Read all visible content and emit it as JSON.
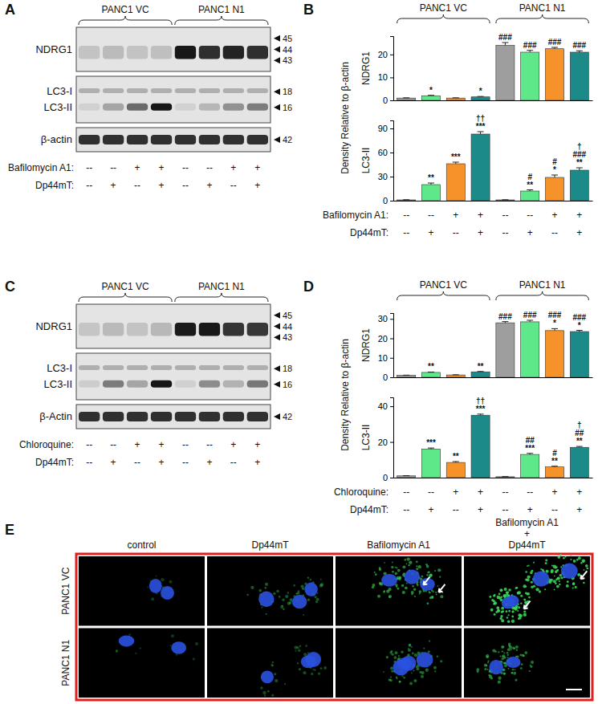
{
  "panels": {
    "A": {
      "letter": "A",
      "groups": [
        "PANC1 VC",
        "PANC1 N1"
      ],
      "rows": [
        {
          "labels": [
            "NDRG1"
          ],
          "markers": [
            45,
            44,
            43
          ]
        },
        {
          "labels": [
            "LC3-I",
            "LC3-II"
          ],
          "markers": [
            18,
            16
          ]
        },
        {
          "labels": [
            "β-actin"
          ],
          "markers": [
            42
          ]
        }
      ],
      "treatments": [
        {
          "label": "Bafilomycin A1:",
          "marks": [
            "--",
            "--",
            "+",
            "+",
            "--",
            "--",
            "+",
            "+"
          ]
        },
        {
          "label": "Dp44mT:",
          "marks": [
            "--",
            "+",
            "--",
            "+",
            "--",
            "+",
            "--",
            "+"
          ]
        }
      ]
    },
    "B": {
      "letter": "B",
      "groups": [
        "PANC1 VC",
        "PANC1 N1"
      ],
      "y_label": "Density Relative to β-actin",
      "treatments": [
        {
          "label": "Bafilomycin A1:",
          "marks": [
            "--",
            "--",
            "+",
            "+",
            "--",
            "--",
            "+",
            "+"
          ]
        },
        {
          "label": "Dp44mT:",
          "marks": [
            "--",
            "+",
            "--",
            "+",
            "--",
            "+",
            "--",
            "+"
          ]
        }
      ]
    },
    "C": {
      "letter": "C",
      "groups": [
        "PANC1 VC",
        "PANC1 N1"
      ],
      "rows": [
        {
          "labels": [
            "NDRG1"
          ],
          "markers": [
            45,
            44,
            43
          ]
        },
        {
          "labels": [
            "LC3-I",
            "LC3-II"
          ],
          "markers": [
            18,
            16
          ]
        },
        {
          "labels": [
            "β-Actin"
          ],
          "markers": [
            42
          ]
        }
      ],
      "treatments": [
        {
          "label": "Chloroquine:",
          "marks": [
            "--",
            "--",
            "+",
            "+",
            "--",
            "--",
            "+",
            "+"
          ]
        },
        {
          "label": "Dp44mT:",
          "marks": [
            "--",
            "+",
            "--",
            "+",
            "--",
            "+",
            "--",
            "+"
          ]
        }
      ]
    },
    "D": {
      "letter": "D",
      "groups": [
        "PANC1 VC",
        "PANC1 N1"
      ],
      "y_label": "Density Relative to β-actin",
      "treatments": [
        {
          "label": "Chloroquine:",
          "marks": [
            "--",
            "--",
            "+",
            "+",
            "--",
            "--",
            "+",
            "+"
          ]
        },
        {
          "label": "Dp44mT:",
          "marks": [
            "--",
            "+",
            "--",
            "+",
            "--",
            "+",
            "--",
            "+"
          ]
        }
      ]
    },
    "E": {
      "letter": "E",
      "columns": [
        [
          "control"
        ],
        [
          "Dp44mT"
        ],
        [
          "Bafilomycin A1"
        ],
        [
          "Bafilomycin A1",
          "+",
          "Dp44mT"
        ]
      ],
      "rows": [
        "PANC1 VC",
        "PANC1 N1"
      ]
    }
  },
  "chart_data": [
    {
      "type": "bar",
      "title": "NDRG1",
      "categories": [
        null,
        null,
        null,
        null,
        null,
        null,
        null,
        null
      ],
      "values": [
        1,
        2,
        1,
        1.5,
        24,
        21,
        22.5,
        21
      ],
      "errors": [
        0.1,
        0.2,
        0.1,
        0.2,
        1.2,
        0.8,
        0.6,
        0.6
      ],
      "colors": [
        "#9e9e9e",
        "#5ee88a",
        "#f5922a",
        "#1d8a8a",
        "#9e9e9e",
        "#5ee88a",
        "#f5922a",
        "#1d8a8a"
      ],
      "annotations": [
        [],
        [
          "*"
        ],
        [],
        [
          "*"
        ],
        [
          "###"
        ],
        [
          "###"
        ],
        [
          "###"
        ],
        [
          "###"
        ]
      ],
      "ylim": [
        0,
        28
      ],
      "yticks": [
        0,
        10,
        20
      ],
      "tick_labels": "y"
    },
    {
      "type": "bar",
      "title": "LC3-II",
      "categories": [
        null,
        null,
        null,
        null,
        null,
        null,
        null,
        null
      ],
      "values": [
        1,
        20,
        46,
        83,
        1,
        12,
        29,
        38
      ],
      "errors": [
        0.2,
        2,
        2,
        3,
        0.2,
        1.5,
        3,
        3
      ],
      "colors": [
        "#9e9e9e",
        "#5ee88a",
        "#f5922a",
        "#1d8a8a",
        "#9e9e9e",
        "#5ee88a",
        "#f5922a",
        "#1d8a8a"
      ],
      "annotations": [
        [],
        [
          "**"
        ],
        [
          "***"
        ],
        [
          "††",
          "***"
        ],
        [],
        [
          "#",
          "**"
        ],
        [
          "#",
          "*"
        ],
        [
          "†",
          "###",
          "**"
        ]
      ],
      "ylim": [
        0,
        100
      ],
      "yticks": [
        0,
        30,
        60,
        90
      ],
      "tick_labels": "y"
    },
    {
      "type": "bar",
      "title": "NDRG1",
      "categories": [
        null,
        null,
        null,
        null,
        null,
        null,
        null,
        null
      ],
      "values": [
        1,
        2.5,
        1.2,
        2.8,
        28,
        28.5,
        24,
        23.5
      ],
      "errors": [
        0.1,
        0.2,
        0.1,
        0.2,
        0.6,
        0.8,
        1,
        0.6
      ],
      "colors": [
        "#9e9e9e",
        "#5ee88a",
        "#f5922a",
        "#1d8a8a",
        "#9e9e9e",
        "#5ee88a",
        "#f5922a",
        "#1d8a8a"
      ],
      "annotations": [
        [],
        [
          "**"
        ],
        [],
        [
          "**"
        ],
        [
          "###"
        ],
        [
          "###"
        ],
        [
          "###",
          "*"
        ],
        [
          "###",
          "*"
        ]
      ],
      "ylim": [
        0,
        33
      ],
      "yticks": [
        0,
        10,
        20,
        30
      ],
      "tick_labels": "y"
    },
    {
      "type": "bar",
      "title": "LC3-II",
      "categories": [
        null,
        null,
        null,
        null,
        null,
        null,
        null,
        null
      ],
      "values": [
        1,
        16,
        8.5,
        35,
        0.5,
        13,
        6,
        17
      ],
      "errors": [
        0.1,
        0.6,
        0.5,
        0.6,
        0.1,
        0.6,
        0.4,
        0.5
      ],
      "colors": [
        "#9e9e9e",
        "#5ee88a",
        "#f5922a",
        "#1d8a8a",
        "#9e9e9e",
        "#5ee88a",
        "#f5922a",
        "#1d8a8a"
      ],
      "annotations": [
        [],
        [
          "***"
        ],
        [
          "**"
        ],
        [
          "††",
          "***"
        ],
        [],
        [
          "##",
          "***"
        ],
        [
          "#",
          "**"
        ],
        [
          "†",
          "##",
          "**"
        ]
      ],
      "ylim": [
        0,
        45
      ],
      "yticks": [
        0,
        20,
        40
      ],
      "tick_labels": "y"
    }
  ]
}
